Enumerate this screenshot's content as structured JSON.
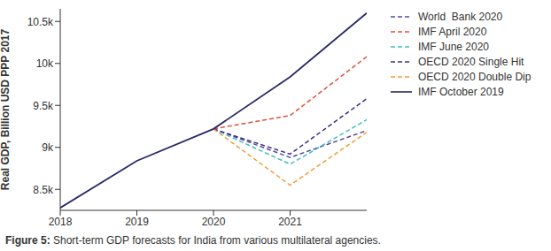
{
  "chart_data": {
    "type": "line",
    "y_label": "Real GDP, Billion USD PPP 2017",
    "caption_label": "Figure 5:",
    "caption": "Short-term GDP forecasts for India from various multilateral agencies.",
    "x": [
      2018,
      2019,
      2020,
      2021,
      2022
    ],
    "xlim": [
      2018,
      2022
    ],
    "xticks": [
      2018,
      2019,
      2020,
      2021
    ],
    "ylim": [
      8250,
      10650
    ],
    "yticks": [
      {
        "value": 8500,
        "label": "8.5k"
      },
      {
        "value": 9000,
        "label": "9k"
      },
      {
        "value": 9500,
        "label": "9.5k"
      },
      {
        "value": 10000,
        "label": "10k"
      },
      {
        "value": 10500,
        "label": "10.5k"
      }
    ],
    "grid": false,
    "legend": "right",
    "series": [
      {
        "name": "World  Bank 2020",
        "color": "#5b4b9e",
        "line_style": "dashed",
        "values": [
          null,
          null,
          9220,
          8880,
          9200
        ]
      },
      {
        "name": "IMF April 2020",
        "color": "#e0503c",
        "line_style": "dashed",
        "values": [
          null,
          null,
          9220,
          9380,
          10080
        ]
      },
      {
        "name": "IMF June 2020",
        "color": "#3fbfc7",
        "line_style": "dashed",
        "values": [
          null,
          null,
          9220,
          8800,
          9330
        ]
      },
      {
        "name": "OECD 2020 Single Hit",
        "color": "#3d2f80",
        "line_style": "dashed",
        "values": [
          null,
          null,
          9220,
          8920,
          9580
        ]
      },
      {
        "name": "OECD 2020 Double Dip",
        "color": "#f39c3a",
        "line_style": "dashed",
        "values": [
          null,
          null,
          9220,
          8550,
          9180
        ]
      },
      {
        "name": "IMF October 2019",
        "color": "#2a2a6a",
        "line_style": "solid",
        "values": [
          8280,
          8840,
          9220,
          9840,
          10600
        ]
      }
    ]
  }
}
